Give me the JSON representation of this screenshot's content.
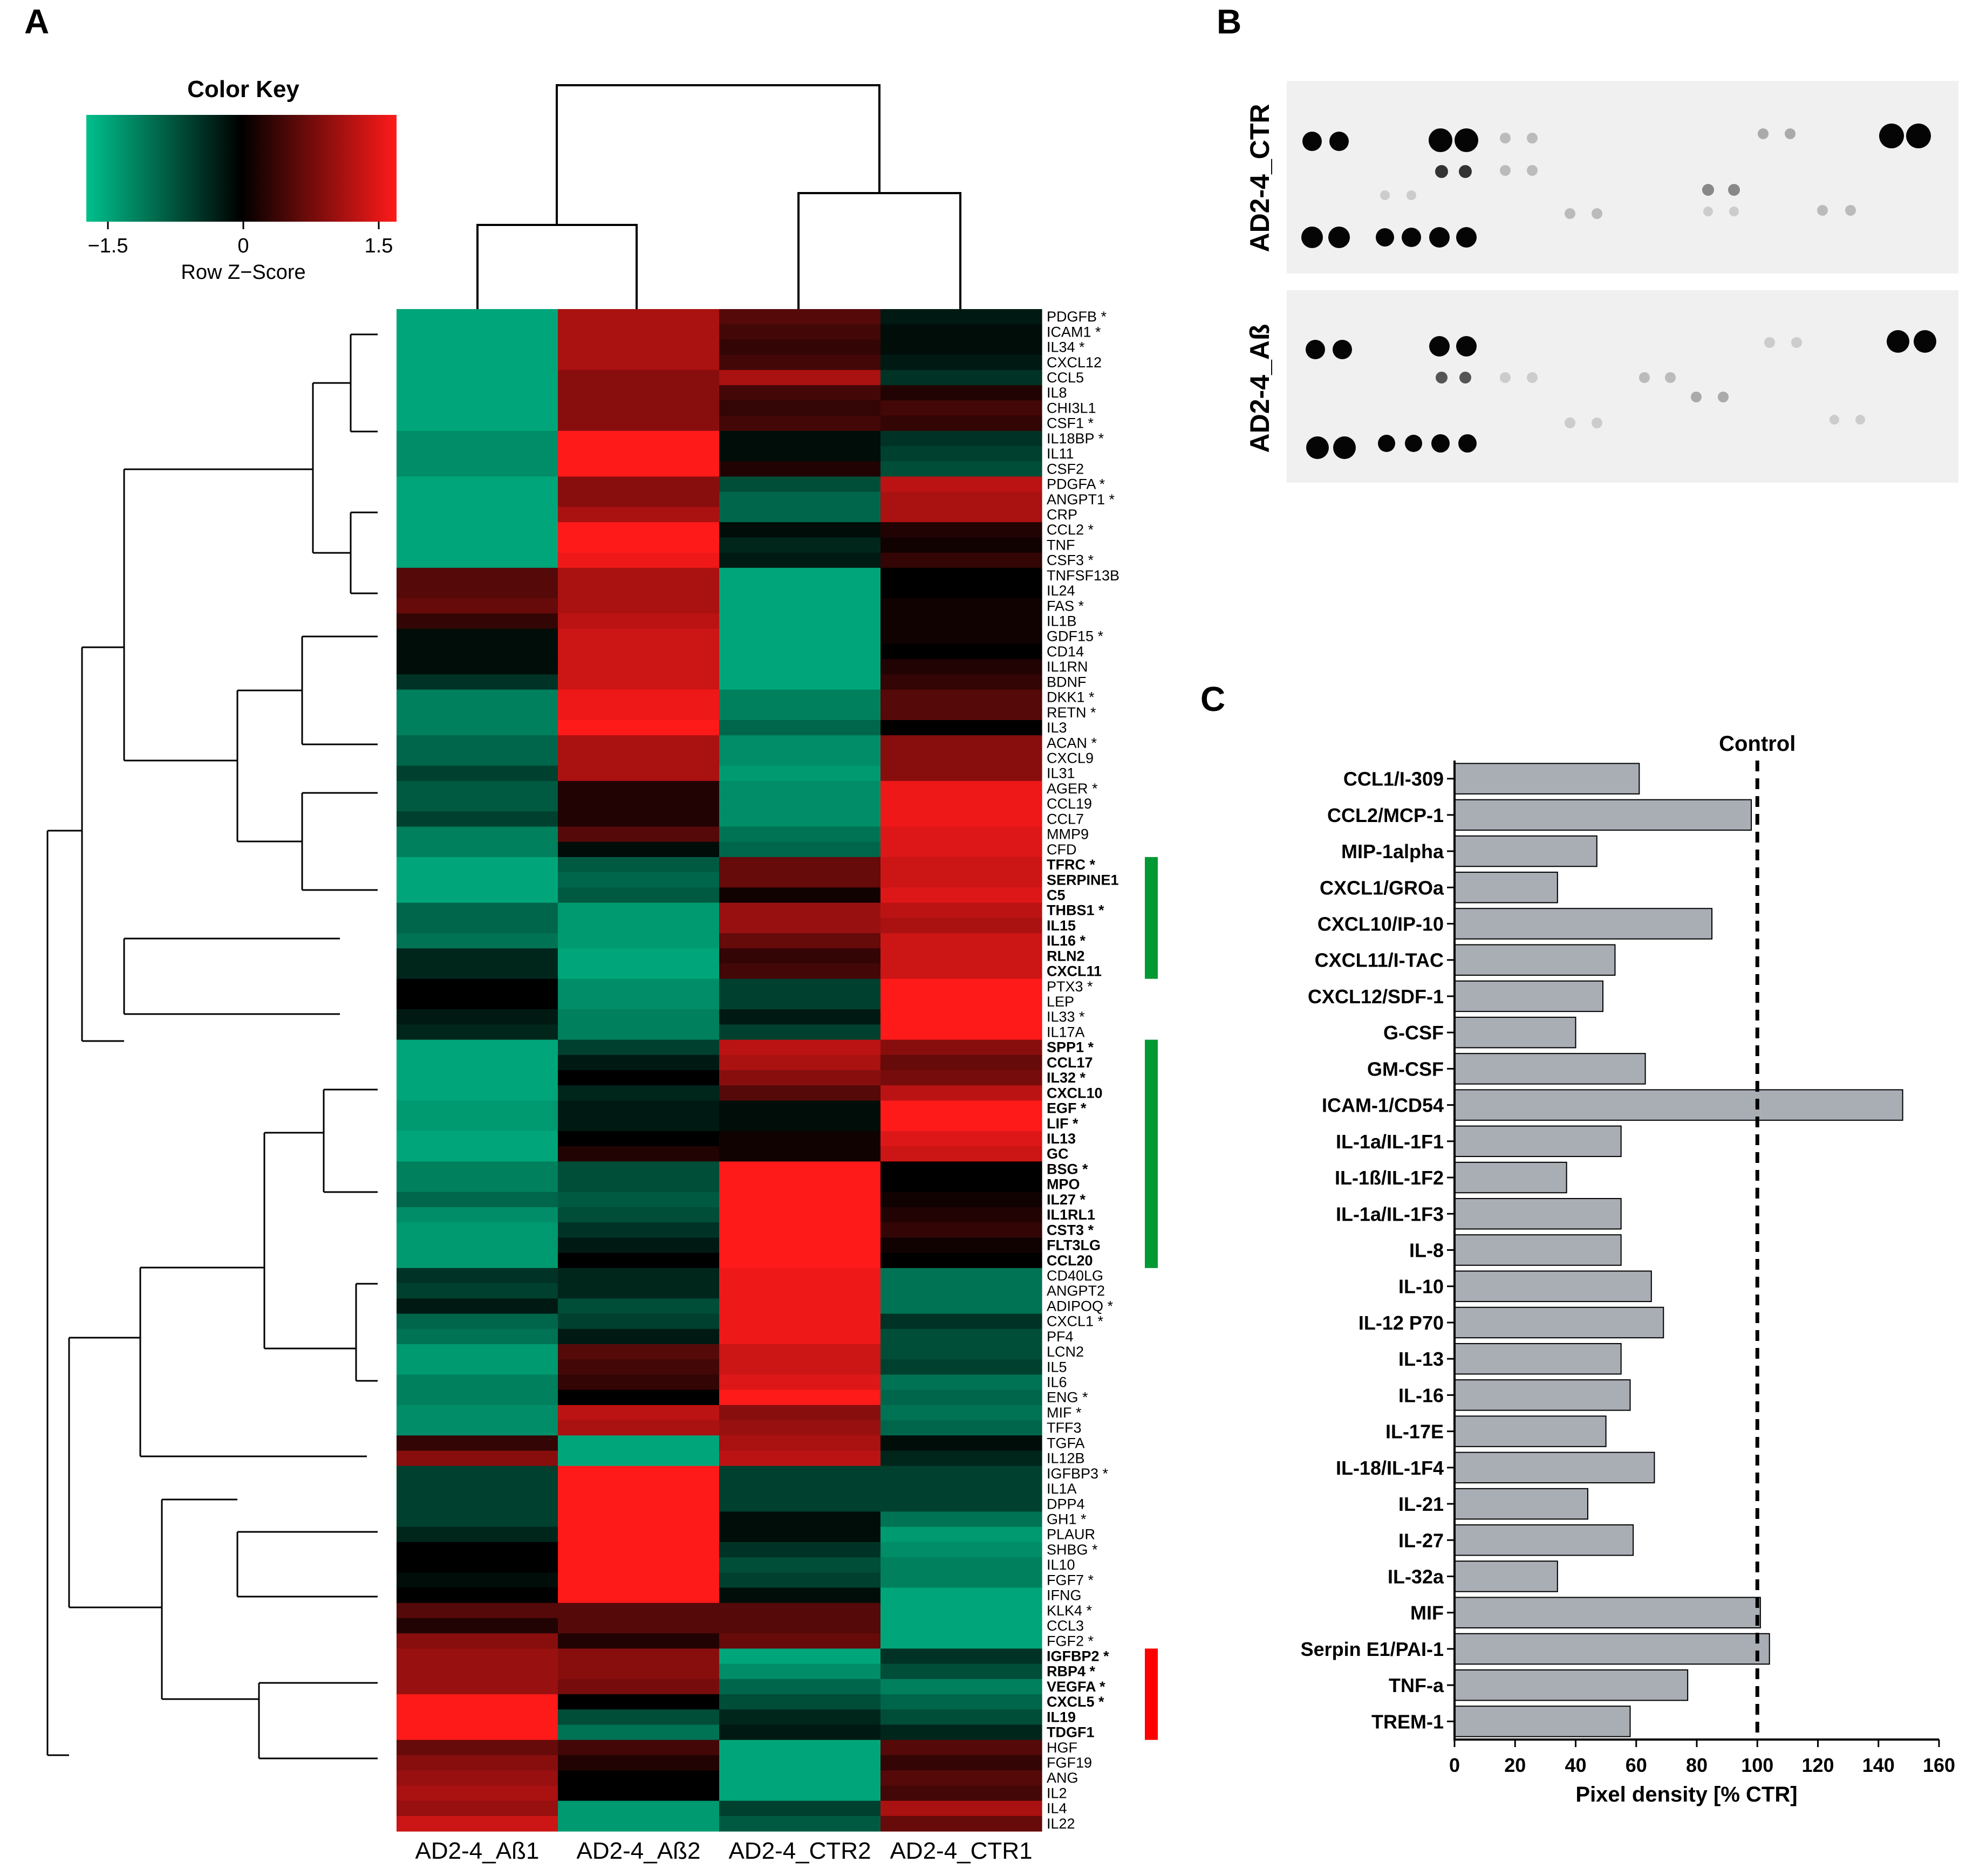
{
  "panels": {
    "a": "A",
    "b": "B",
    "c": "C"
  },
  "color_key": {
    "title": "Color Key",
    "ticks": [
      "−1.5",
      "0",
      "1.5"
    ],
    "xlabel": "Row Z−Score",
    "colors": {
      "low": "#00c08c",
      "mid": "#000000",
      "high": "#ff1a1a"
    }
  },
  "chart_data": [
    {
      "type": "heatmap",
      "columns": [
        "AD2-4_Aß1",
        "AD2-4_Aß2",
        "AD2-4_CTR2",
        "AD2-4_CTR1"
      ],
      "rows": [
        {
          "g": "PDGFB *",
          "b": 0,
          "z": [
            -1.3,
            1.0,
            0.5,
            -0.2
          ]
        },
        {
          "g": "ICAM1 *",
          "b": 0,
          "z": [
            -1.3,
            1.0,
            0.4,
            -0.1
          ]
        },
        {
          "g": "IL34 *",
          "b": 0,
          "z": [
            -1.3,
            1.0,
            0.3,
            -0.1
          ]
        },
        {
          "g": "CXCL12",
          "b": 0,
          "z": [
            -1.3,
            1.0,
            0.4,
            -0.2
          ]
        },
        {
          "g": "CCL5",
          "b": 0,
          "z": [
            -1.3,
            0.8,
            1.0,
            -0.4
          ]
        },
        {
          "g": "IL8",
          "b": 0,
          "z": [
            -1.3,
            0.8,
            0.4,
            0.2
          ]
        },
        {
          "g": "CHI3L1",
          "b": 0,
          "z": [
            -1.3,
            0.8,
            0.3,
            0.4
          ]
        },
        {
          "g": "CSF1 *",
          "b": 0,
          "z": [
            -1.3,
            0.8,
            0.4,
            0.3
          ]
        },
        {
          "g": "IL18BP *",
          "b": 0,
          "z": [
            -1.1,
            1.5,
            -0.1,
            -0.4
          ]
        },
        {
          "g": "IL11",
          "b": 0,
          "z": [
            -1.1,
            1.5,
            -0.1,
            -0.5
          ]
        },
        {
          "g": "CSF2",
          "b": 0,
          "z": [
            -1.1,
            1.5,
            0.2,
            -0.6
          ]
        },
        {
          "g": "PDGFA *",
          "b": 0,
          "z": [
            -1.3,
            0.8,
            -0.6,
            1.1
          ]
        },
        {
          "g": "ANGPT1 *",
          "b": 0,
          "z": [
            -1.3,
            0.8,
            -0.8,
            1.0
          ]
        },
        {
          "g": "CRP",
          "b": 0,
          "z": [
            -1.3,
            1.0,
            -0.8,
            1.0
          ]
        },
        {
          "g": "CCL2 *",
          "b": 0,
          "z": [
            -1.3,
            1.5,
            -0.1,
            0.2
          ]
        },
        {
          "g": "TNF",
          "b": 0,
          "z": [
            -1.3,
            1.5,
            -0.3,
            0.1
          ]
        },
        {
          "g": "CSF3 *",
          "b": 0,
          "z": [
            -1.3,
            1.4,
            -0.2,
            0.3
          ]
        },
        {
          "g": "TNFSF13B",
          "b": 0,
          "z": [
            0.5,
            1.0,
            -1.3,
            0
          ]
        },
        {
          "g": "IL24",
          "b": 0,
          "z": [
            0.5,
            1.0,
            -1.3,
            0
          ]
        },
        {
          "g": "FAS *",
          "b": 0,
          "z": [
            0.6,
            1.0,
            -1.3,
            0.1
          ]
        },
        {
          "g": "IL1B",
          "b": 0,
          "z": [
            0.3,
            1.1,
            -1.3,
            0.1
          ]
        },
        {
          "g": "GDF15 *",
          "b": 0,
          "z": [
            -0.1,
            1.2,
            -1.3,
            0.1
          ]
        },
        {
          "g": "CD14",
          "b": 0,
          "z": [
            -0.1,
            1.2,
            -1.3,
            0
          ]
        },
        {
          "g": "IL1RN",
          "b": 0,
          "z": [
            -0.1,
            1.2,
            -1.3,
            0.2
          ]
        },
        {
          "g": "BDNF",
          "b": 0,
          "z": [
            -0.4,
            1.2,
            -1.3,
            0.3
          ]
        },
        {
          "g": "DKK1 *",
          "b": 0,
          "z": [
            -1.0,
            1.4,
            -1.0,
            0.5
          ]
        },
        {
          "g": "RETN *",
          "b": 0,
          "z": [
            -1.0,
            1.4,
            -1.0,
            0.5
          ]
        },
        {
          "g": "IL3",
          "b": 0,
          "z": [
            -1.0,
            1.5,
            -0.8,
            0
          ]
        },
        {
          "g": "ACAN *",
          "b": 0,
          "z": [
            -0.8,
            1.0,
            -1.1,
            0.8
          ]
        },
        {
          "g": "CXCL9",
          "b": 0,
          "z": [
            -0.8,
            1.0,
            -1.1,
            0.8
          ]
        },
        {
          "g": "IL31",
          "b": 0,
          "z": [
            -0.5,
            1.0,
            -1.2,
            0.8
          ]
        },
        {
          "g": "AGER *",
          "b": 0,
          "z": [
            -0.7,
            0.2,
            -1.1,
            1.4
          ]
        },
        {
          "g": "CCL19",
          "b": 0,
          "z": [
            -0.7,
            0.2,
            -1.1,
            1.4
          ]
        },
        {
          "g": "CCL7",
          "b": 0,
          "z": [
            -0.5,
            0.2,
            -1.1,
            1.4
          ]
        },
        {
          "g": "MMP9",
          "b": 0,
          "z": [
            -1.0,
            0.5,
            -0.9,
            1.3
          ]
        },
        {
          "g": "CFD",
          "b": 0,
          "z": [
            -1.0,
            -0.1,
            -0.8,
            1.3
          ]
        },
        {
          "g": "TFRC *",
          "b": 1,
          "z": [
            -1.3,
            -0.7,
            0.6,
            1.2
          ]
        },
        {
          "g": "SERPINE1",
          "b": 1,
          "z": [
            -1.3,
            -0.8,
            0.6,
            1.2
          ]
        },
        {
          "g": "C5",
          "b": 1,
          "z": [
            -1.3,
            -0.7,
            0.1,
            1.3
          ]
        },
        {
          "g": "THBS1 *",
          "b": 1,
          "z": [
            -0.8,
            -1.2,
            0.9,
            1.1
          ]
        },
        {
          "g": "IL15",
          "b": 1,
          "z": [
            -0.8,
            -1.2,
            0.9,
            1.0
          ]
        },
        {
          "g": "IL16 *",
          "b": 1,
          "z": [
            -0.9,
            -1.2,
            0.6,
            1.2
          ]
        },
        {
          "g": "RLN2",
          "b": 1,
          "z": [
            -0.3,
            -1.3,
            0.3,
            1.2
          ]
        },
        {
          "g": "CXCL11",
          "b": 1,
          "z": [
            -0.3,
            -1.3,
            0.4,
            1.2
          ]
        },
        {
          "g": "PTX3 *",
          "b": 0,
          "z": [
            0,
            -1.1,
            -0.5,
            1.5
          ]
        },
        {
          "g": "LEP",
          "b": 0,
          "z": [
            0,
            -1.1,
            -0.5,
            1.5
          ]
        },
        {
          "g": "IL33 *",
          "b": 0,
          "z": [
            -0.2,
            -1.0,
            -0.2,
            1.5
          ]
        },
        {
          "g": "IL17A",
          "b": 0,
          "z": [
            -0.3,
            -1.0,
            -0.5,
            1.5
          ]
        },
        {
          "g": "SPP1 *",
          "b": 1,
          "z": [
            -1.3,
            -0.5,
            1.1,
            0.8
          ]
        },
        {
          "g": "CCL17",
          "b": 1,
          "z": [
            -1.3,
            -0.2,
            1.0,
            0.6
          ]
        },
        {
          "g": "IL32 *",
          "b": 1,
          "z": [
            -1.3,
            0,
            0.8,
            0.7
          ]
        },
        {
          "g": "CXCL10",
          "b": 1,
          "z": [
            -1.3,
            -0.3,
            0.5,
            1.1
          ]
        },
        {
          "g": "EGF *",
          "b": 1,
          "z": [
            -1.2,
            -0.2,
            -0.1,
            1.5
          ]
        },
        {
          "g": "LIF *",
          "b": 1,
          "z": [
            -1.2,
            -0.2,
            -0.1,
            1.5
          ]
        },
        {
          "g": "IL13",
          "b": 1,
          "z": [
            -1.3,
            0,
            0.1,
            1.3
          ]
        },
        {
          "g": "GC",
          "b": 1,
          "z": [
            -1.3,
            0.2,
            0.1,
            1.2
          ]
        },
        {
          "g": "BSG *",
          "b": 1,
          "z": [
            -1.0,
            -0.6,
            1.5,
            0
          ]
        },
        {
          "g": "MPO",
          "b": 1,
          "z": [
            -1.0,
            -0.6,
            1.5,
            0
          ]
        },
        {
          "g": "IL27 *",
          "b": 1,
          "z": [
            -0.8,
            -0.7,
            1.5,
            0.1
          ]
        },
        {
          "g": "IL1RL1",
          "b": 1,
          "z": [
            -1.1,
            -0.6,
            1.5,
            0.2
          ]
        },
        {
          "g": "CST3 *",
          "b": 1,
          "z": [
            -1.2,
            -0.4,
            1.5,
            0.3
          ]
        },
        {
          "g": "FLT3LG",
          "b": 1,
          "z": [
            -1.2,
            -0.2,
            1.5,
            0.1
          ]
        },
        {
          "g": "CCL20",
          "b": 1,
          "z": [
            -1.2,
            0,
            1.5,
            0
          ]
        },
        {
          "g": "CD40LG",
          "b": 0,
          "z": [
            -0.4,
            -0.3,
            1.4,
            -0.9
          ]
        },
        {
          "g": "ANGPT2",
          "b": 0,
          "z": [
            -0.5,
            -0.3,
            1.4,
            -0.9
          ]
        },
        {
          "g": "ADIPOQ *",
          "b": 0,
          "z": [
            -0.2,
            -0.6,
            1.4,
            -0.9
          ]
        },
        {
          "g": "CXCL1 *",
          "b": 0,
          "z": [
            -0.8,
            -0.5,
            1.4,
            -0.4
          ]
        },
        {
          "g": "PF4",
          "b": 0,
          "z": [
            -0.9,
            -0.2,
            1.4,
            -0.6
          ]
        },
        {
          "g": "LCN2",
          "b": 0,
          "z": [
            -1.2,
            0.5,
            1.2,
            -0.6
          ]
        },
        {
          "g": "IL5",
          "b": 0,
          "z": [
            -1.2,
            0.4,
            1.2,
            -0.5
          ]
        },
        {
          "g": "IL6",
          "b": 0,
          "z": [
            -1.0,
            0.3,
            1.3,
            -0.9
          ]
        },
        {
          "g": "ENG *",
          "b": 0,
          "z": [
            -1.0,
            0,
            1.5,
            -0.8
          ]
        },
        {
          "g": "MIF *",
          "b": 0,
          "z": [
            -1.1,
            1.1,
            0.8,
            -0.9
          ]
        },
        {
          "g": "TFF3",
          "b": 0,
          "z": [
            -1.1,
            1.0,
            0.9,
            -0.8
          ]
        },
        {
          "g": "TGFA",
          "b": 0,
          "z": [
            0.3,
            -1.3,
            1.0,
            -0.1
          ]
        },
        {
          "g": "IL12B",
          "b": 0,
          "z": [
            0.8,
            -1.3,
            1.1,
            -0.3
          ]
        },
        {
          "g": "IGFBP3 *",
          "b": 0,
          "z": [
            -0.5,
            1.5,
            -0.5,
            -0.5
          ]
        },
        {
          "g": "IL1A",
          "b": 0,
          "z": [
            -0.5,
            1.5,
            -0.5,
            -0.5
          ]
        },
        {
          "g": "DPP4",
          "b": 0,
          "z": [
            -0.5,
            1.5,
            -0.5,
            -0.5
          ]
        },
        {
          "g": "GH1 *",
          "b": 0,
          "z": [
            -0.5,
            1.5,
            -0.1,
            -0.9
          ]
        },
        {
          "g": "PLAUR",
          "b": 0,
          "z": [
            -0.3,
            1.5,
            -0.1,
            -1.2
          ]
        },
        {
          "g": "SHBG *",
          "b": 0,
          "z": [
            0,
            1.5,
            -0.4,
            -1.1
          ]
        },
        {
          "g": "IL10",
          "b": 0,
          "z": [
            0,
            1.5,
            -0.6,
            -1.0
          ]
        },
        {
          "g": "FGF7 *",
          "b": 0,
          "z": [
            -0.1,
            1.5,
            -0.5,
            -1.0
          ]
        },
        {
          "g": "IFNG",
          "b": 0,
          "z": [
            0,
            1.5,
            -0.1,
            -1.3
          ]
        },
        {
          "g": "KLK4 *",
          "b": 0,
          "z": [
            0.5,
            0.5,
            0.5,
            -1.3
          ]
        },
        {
          "g": "CCL3",
          "b": 0,
          "z": [
            0.2,
            0.5,
            0.5,
            -1.3
          ]
        },
        {
          "g": "FGF2 *",
          "b": 0,
          "z": [
            0.8,
            0.2,
            0.6,
            -1.3
          ]
        },
        {
          "g": "IGFBP2 *",
          "b": 2,
          "z": [
            0.9,
            0.8,
            -1.3,
            -0.4
          ]
        },
        {
          "g": "RBP4 *",
          "b": 2,
          "z": [
            0.9,
            0.8,
            -1.1,
            -0.6
          ]
        },
        {
          "g": "VEGFA *",
          "b": 2,
          "z": [
            0.9,
            0.7,
            -0.8,
            -1.0
          ]
        },
        {
          "g": "CXCL5 *",
          "b": 2,
          "z": [
            1.5,
            0,
            -0.6,
            -0.8
          ]
        },
        {
          "g": "IL19",
          "b": 2,
          "z": [
            1.5,
            -0.6,
            -0.3,
            -0.6
          ]
        },
        {
          "g": "TDGF1",
          "b": 2,
          "z": [
            1.5,
            -0.9,
            -0.2,
            -0.3
          ]
        },
        {
          "g": "HGF",
          "b": 0,
          "z": [
            0.6,
            0.4,
            -1.3,
            0.5
          ]
        },
        {
          "g": "FGF19",
          "b": 0,
          "z": [
            0.8,
            0.2,
            -1.3,
            0.3
          ]
        },
        {
          "g": "ANG",
          "b": 0,
          "z": [
            0.9,
            0,
            -1.3,
            0.5
          ]
        },
        {
          "g": "IL2",
          "b": 0,
          "z": [
            1.0,
            0,
            -1.3,
            0.4
          ]
        },
        {
          "g": "IL4",
          "b": 0,
          "z": [
            0.9,
            -1.2,
            -0.5,
            1.0
          ]
        },
        {
          "g": "IL22",
          "b": 0,
          "z": [
            1.2,
            -1.2,
            -0.7,
            0.6
          ]
        }
      ],
      "annotation_bars": [
        {
          "color": "#009933",
          "from_row": "TFRC *",
          "to_row": "CXCL11"
        },
        {
          "color": "#009933",
          "from_row": "SPP1 *",
          "to_row": "CCL20"
        },
        {
          "color": "#ff0000",
          "from_row": "IGFBP2 *",
          "to_row": "TDGF1"
        }
      ]
    },
    {
      "type": "bar",
      "orientation": "horizontal",
      "categories": [
        "CCL1/I-309",
        "CCL2/MCP-1",
        "MIP-1alpha",
        "CXCL1/GROa",
        "CXCL10/IP-10",
        "CXCL11/I-TAC",
        "CXCL12/SDF-1",
        "G-CSF",
        "GM-CSF",
        "ICAM-1/CD54",
        "IL-1a/IL-1F1",
        "IL-1ß/IL-1F2",
        "IL-1a/IL-1F3",
        "IL-8",
        "IL-10",
        "IL-12 P70",
        "IL-13",
        "IL-16",
        "IL-17E",
        "IL-18/IL-1F4",
        "IL-21",
        "IL-27",
        "IL-32a",
        "MIF",
        "Serpin E1/PAI-1",
        "TNF-a",
        "TREM-1"
      ],
      "values": [
        61,
        98,
        47,
        34,
        85,
        53,
        49,
        40,
        63,
        148,
        55,
        37,
        55,
        55,
        65,
        69,
        55,
        58,
        50,
        66,
        44,
        59,
        34,
        101,
        104,
        77,
        58
      ],
      "xlabel": "Pixel density [% CTR]",
      "xlim": [
        0,
        160
      ],
      "xticks": [
        "0",
        "20",
        "40",
        "60",
        "80",
        "100",
        "120",
        "140",
        "160"
      ],
      "reference_line": {
        "label": "Control",
        "value": 100
      },
      "bar_color": "#a9adb4"
    }
  ],
  "blots": [
    {
      "label": "AD2-4_CTR"
    },
    {
      "label": "AD2-4_Aß"
    }
  ]
}
